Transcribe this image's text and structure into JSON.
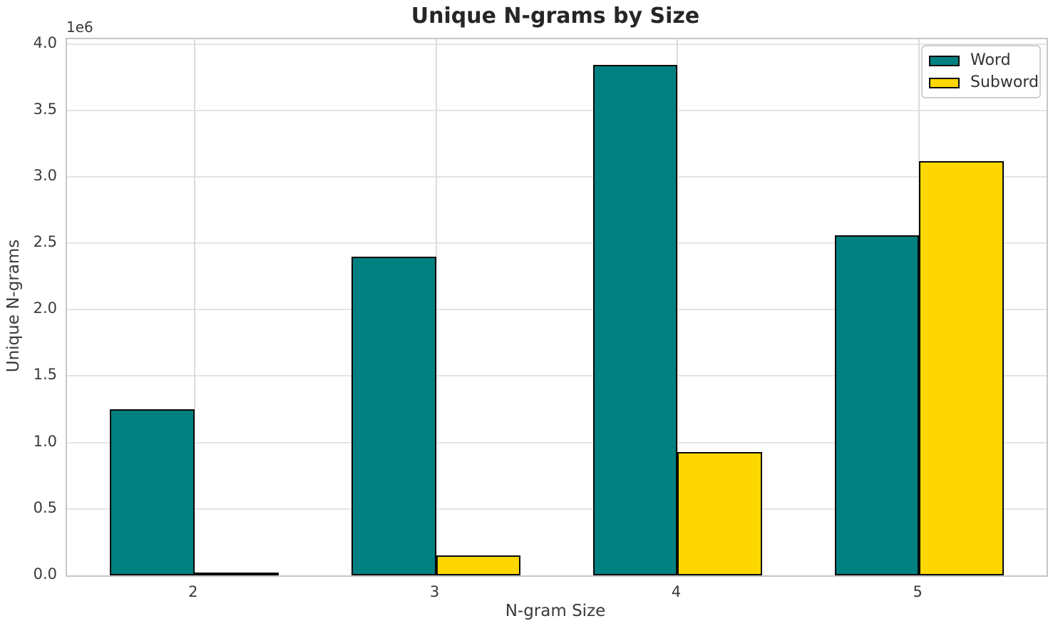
{
  "chart_data": {
    "type": "bar",
    "title": "Unique N-grams by Size",
    "xlabel": "N-gram Size",
    "ylabel": "Unique N-grams",
    "y_offset_text": "1e6",
    "categories": [
      "2",
      "3",
      "4",
      "5"
    ],
    "series": [
      {
        "name": "Word",
        "color": "#008080",
        "values": [
          1250000,
          2400000,
          3840000,
          2560000
        ]
      },
      {
        "name": "Subword",
        "color": "#FFD700",
        "values": [
          20000,
          150000,
          930000,
          3120000
        ]
      }
    ],
    "bar_edge_color": "#0a0a0a",
    "bar_width": 0.35,
    "ylim": [
      0,
      4035000
    ],
    "yticks": {
      "values": [
        0,
        500000,
        1000000,
        1500000,
        2000000,
        2500000,
        3000000,
        3500000,
        4000000
      ],
      "labels": [
        "0.0",
        "0.5",
        "1.0",
        "1.5",
        "2.0",
        "2.5",
        "3.0",
        "3.5",
        "4.0"
      ]
    },
    "grid": true,
    "legend": {
      "position": "upper right",
      "entries": [
        "Word",
        "Subword"
      ]
    }
  }
}
